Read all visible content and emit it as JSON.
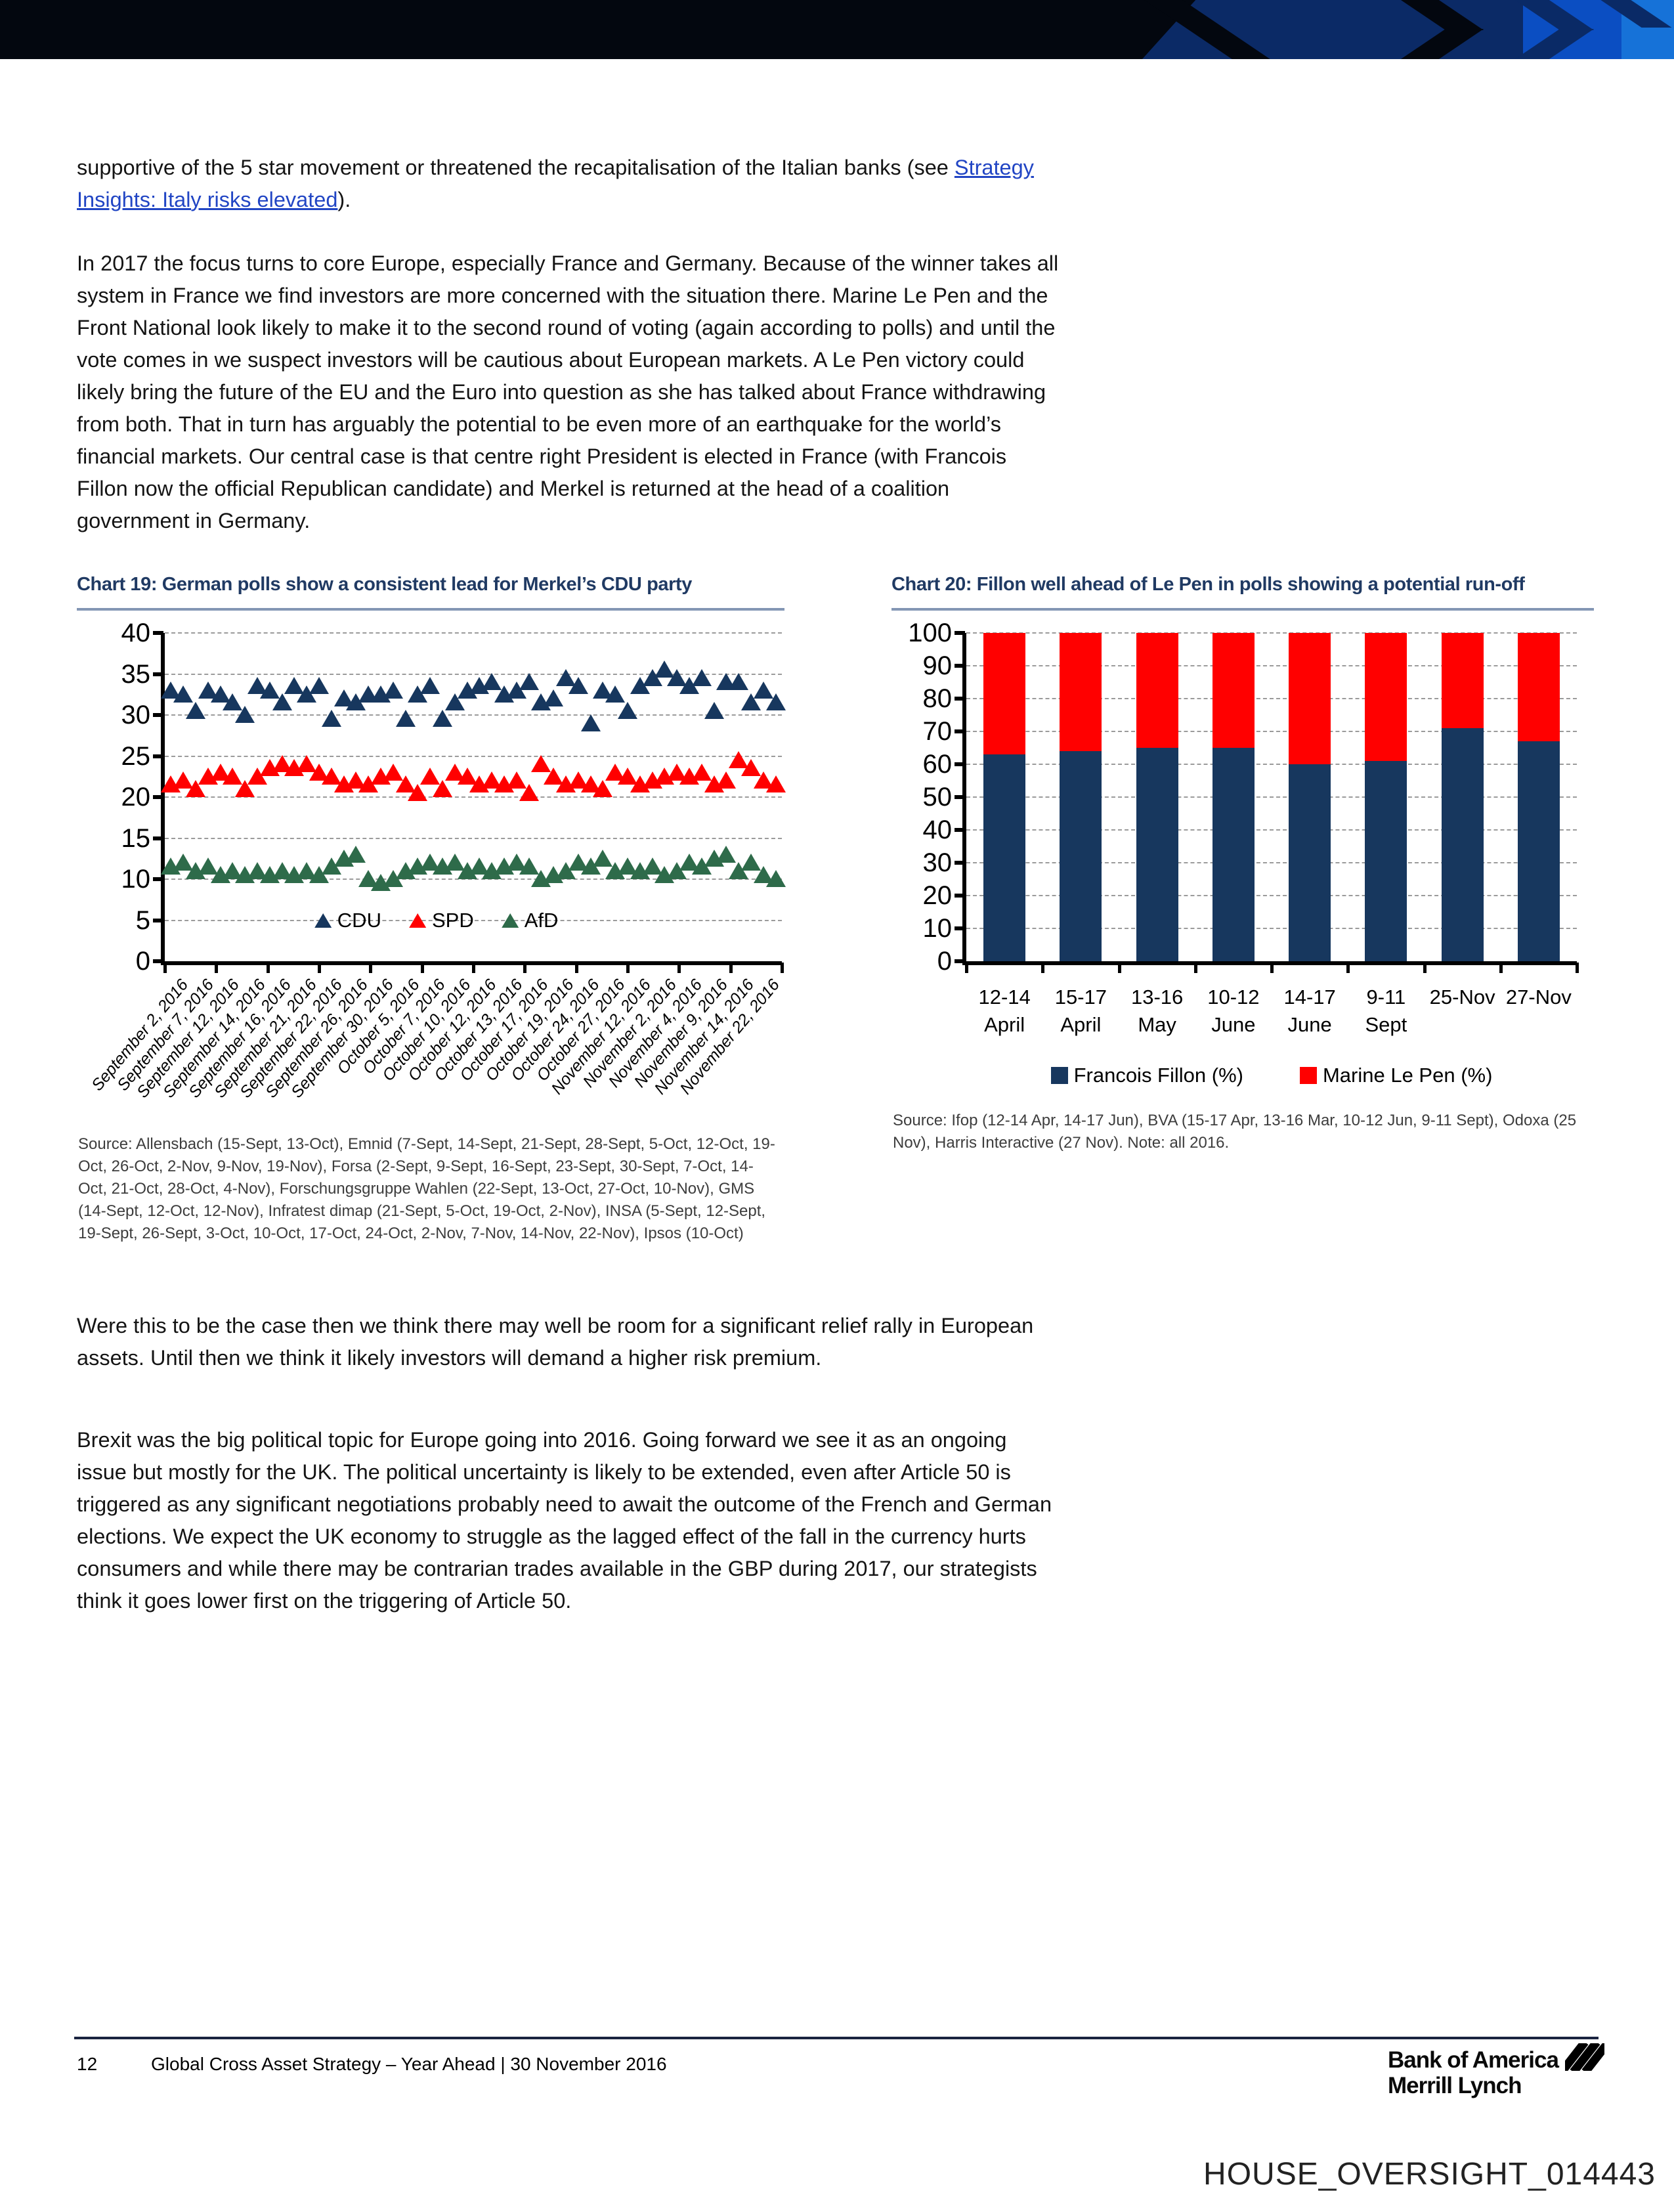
{
  "body": {
    "p1_pre": "supportive of the 5 star movement or threatened the recapitalisation of the Italian banks (see ",
    "p1_link": "Strategy Insights: Italy risks elevated",
    "p1_post": ").",
    "p2": "In 2017 the focus turns to core Europe, especially France and Germany. Because of the winner takes all system in France we find investors are more concerned with the situation there. Marine Le Pen and the Front National look likely to make it to the second round of voting (again according to polls) and until the vote comes in we suspect investors will be cautious about European markets. A Le Pen victory could likely bring the future of the EU and the Euro into question as she has talked about France withdrawing from both. That in turn has arguably the potential to be even more of an earthquake for the world’s financial markets. Our central case is that centre right President is elected in France (with Francois Fillon now the official Republican candidate) and Merkel is returned at the head of a coalition government in Germany.",
    "p3": "Were this to be the case then we think there may well be room for a significant relief rally in European assets. Until then we think it likely investors will demand a higher risk premium.",
    "p4": "Brexit was the big political topic for Europe going into 2016. Going forward we see it as an ongoing issue but mostly for the UK. The political uncertainty is likely to be extended, even after Article 50 is triggered as any significant negotiations probably need to await the outcome of the French and German elections. We expect the UK economy to struggle as the lagged effect of the fall in the currency hurts consumers and while there may be contrarian trades available in the GBP during 2017, our strategists think it goes lower first on the triggering of Article 50."
  },
  "chart_data": [
    {
      "id": "chart19",
      "type": "scatter",
      "title": "Chart 19: German polls show a consistent lead for Merkel’s CDU party",
      "ylim": [
        0,
        40
      ],
      "yticks": [
        0,
        5,
        10,
        15,
        20,
        25,
        30,
        35,
        40
      ],
      "grid": "dashed-horizontal",
      "legend_position": "bottom-center-inside",
      "x_labels": [
        "September 2, 2016",
        "September 7, 2016",
        "September 12, 2016",
        "September 14, 2016",
        "September 16, 2016",
        "September 21, 2016",
        "September 22, 2016",
        "September 26, 2016",
        "September 30, 2016",
        "October 5, 2016",
        "October 7, 2016",
        "October 10, 2016",
        "October 12, 2016",
        "October 13, 2016",
        "October 17, 2016",
        "October 19, 2016",
        "October 24, 2016",
        "October 27, 2016",
        "November 12, 2016",
        "November 2, 2016",
        "November 4, 2016",
        "November 9, 2016",
        "November 14, 2016",
        "November 22, 2016"
      ],
      "series": [
        {
          "name": "CDU",
          "color": "#17375E",
          "values": [
            33,
            32.5,
            30.5,
            33,
            32.5,
            31.5,
            30,
            33.5,
            33,
            31.5,
            33.5,
            32.5,
            33.5,
            29.5,
            32,
            31.5,
            32.5,
            32.5,
            33,
            29.5,
            32.5,
            33.5,
            29.5,
            31.5,
            33,
            33.5,
            34,
            32.5,
            33,
            34,
            31.5,
            32,
            34.5,
            33.5,
            29,
            33,
            32.5,
            30.5,
            33.5,
            34.5,
            35.5,
            34.5,
            33.5,
            34.5,
            30.5,
            34,
            34,
            31.5,
            33,
            31.5
          ]
        },
        {
          "name": "SPD",
          "color": "#FF0000",
          "values": [
            21.5,
            22,
            21,
            22.5,
            23,
            22.5,
            21,
            22.5,
            23.5,
            24,
            23.5,
            24,
            23,
            22.5,
            21.5,
            22,
            21.5,
            22.5,
            23,
            21.5,
            20.5,
            22.5,
            21,
            23,
            22.5,
            21.5,
            22,
            21.5,
            22,
            20.5,
            24,
            22.5,
            21.5,
            22,
            21.5,
            21,
            23,
            22.5,
            21.5,
            22,
            22.5,
            23,
            22.5,
            23,
            21.5,
            22,
            24.5,
            23.5,
            22,
            21.5
          ]
        },
        {
          "name": "AfD",
          "color": "#2E6B4A",
          "values": [
            11.5,
            12,
            11,
            11.5,
            10.5,
            11,
            10.5,
            11,
            10.5,
            11,
            10.5,
            11,
            10.5,
            11.5,
            12.5,
            13,
            10,
            9.5,
            10,
            11,
            11.5,
            12,
            11.5,
            12,
            11,
            11.5,
            11,
            11.5,
            12,
            11.5,
            10,
            10.5,
            11,
            12,
            11.5,
            12.5,
            11,
            11.5,
            11,
            11.5,
            10.5,
            11,
            12,
            11.5,
            12.5,
            13,
            11,
            12,
            10.5,
            10
          ]
        }
      ],
      "source": "Source: Allensbach (15-Sept, 13-Oct), Emnid (7-Sept, 14-Sept, 21-Sept, 28-Sept, 5-Oct, 12-Oct, 19-Oct, 26-Oct, 2-Nov, 9-Nov, 19-Nov), Forsa (2-Sept, 9-Sept, 16-Sept, 23-Sept, 30-Sept, 7-Oct, 14-Oct, 21-Oct, 28-Oct, 4-Nov), Forschungsgruppe Wahlen (22-Sept, 13-Oct, 27-Oct, 10-Nov), GMS (14-Sept, 12-Oct, 12-Nov), Infratest dimap (21-Sept, 5-Oct, 19-Oct, 2-Nov), INSA (5-Sept, 12-Sept, 19-Sept, 26-Sept, 3-Oct, 10-Oct, 17-Oct, 24-Oct, 2-Nov, 7-Nov, 14-Nov, 22-Nov), Ipsos (10-Oct)"
    },
    {
      "id": "chart20",
      "type": "stacked-bar",
      "title": "Chart 20: Fillon well ahead of Le Pen in polls showing a potential run-off",
      "ylim": [
        0,
        100
      ],
      "yticks": [
        0,
        10,
        20,
        30,
        40,
        50,
        60,
        70,
        80,
        90,
        100
      ],
      "grid": "dashed-horizontal",
      "legend_position": "below",
      "categories": [
        {
          "line1": "12-14",
          "line2": "April"
        },
        {
          "line1": "15-17",
          "line2": "April"
        },
        {
          "line1": "13-16",
          "line2": "May"
        },
        {
          "line1": "10-12",
          "line2": "June"
        },
        {
          "line1": "14-17",
          "line2": "June"
        },
        {
          "line1": "9-11",
          "line2": "Sept"
        },
        {
          "line1": "25-Nov",
          "line2": ""
        },
        {
          "line1": "27-Nov",
          "line2": ""
        }
      ],
      "series": [
        {
          "name": "Francois Fillon (%)",
          "color": "#17375E",
          "values": [
            63,
            64,
            65,
            65,
            60,
            61,
            71,
            67
          ]
        },
        {
          "name": "Marine Le Pen (%)",
          "color": "#FF0000",
          "values": [
            37,
            36,
            35,
            35,
            40,
            39,
            29,
            33
          ]
        }
      ],
      "source": "Source: Ifop (12-14 Apr, 14-17 Jun), BVA (15-17 Apr, 13-16 Mar, 10-12 Jun, 9-11 Sept), Odoxa (25 Nov), Harris Interactive (27 Nov). Note: all 2016."
    }
  ],
  "footer": {
    "page_number": "12",
    "text": "Global Cross Asset Strategy – Year Ahead | 30 November 2016",
    "logo_line1": "Bank of America",
    "logo_line2": "Merrill Lynch"
  },
  "stamp": "HOUSE_OVERSIGHT_014443"
}
